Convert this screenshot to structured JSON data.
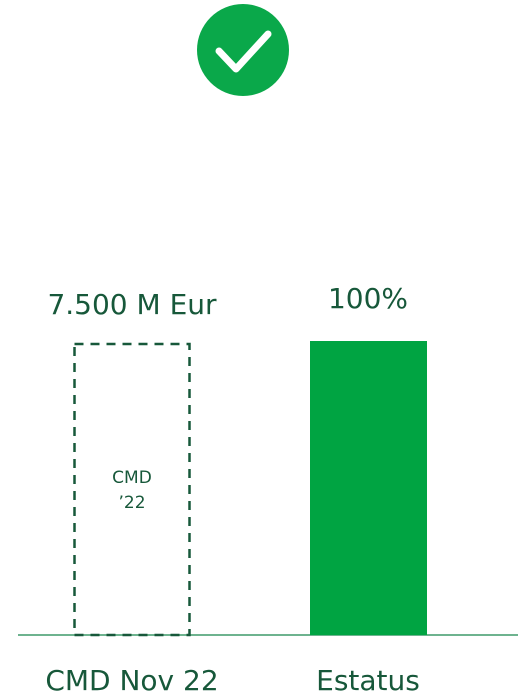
{
  "chart_data": {
    "type": "bar",
    "categories": [
      "Estatus"
    ],
    "values": [
      100
    ],
    "value_labels": [
      "100%"
    ],
    "color": "#00a442",
    "ylim": [
      0,
      100
    ],
    "target": {
      "category": "CMD Nov 22",
      "label": "7.500 M Eur",
      "inner": [
        "CMD",
        "’22"
      ]
    }
  }
}
